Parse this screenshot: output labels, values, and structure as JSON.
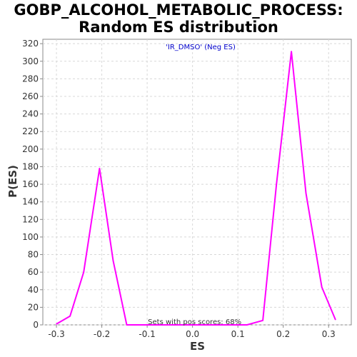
{
  "chart_data": {
    "type": "line",
    "title_lines": [
      "GOBP_ALCOHOL_METABOLIC_PROCESS:",
      "Random ES distribution"
    ],
    "xlabel": "ES",
    "ylabel": "P(ES)",
    "xlim": [
      -0.33,
      0.35
    ],
    "ylim": [
      0,
      325
    ],
    "x_ticks": [
      -0.3,
      -0.2,
      -0.1,
      0.0,
      0.1,
      0.2,
      0.3
    ],
    "x_tick_labels": [
      "-0.3",
      "-0.2",
      "-0.1",
      "0.0",
      "0.1",
      "0.2",
      "0.3"
    ],
    "y_ticks": [
      0,
      20,
      40,
      60,
      80,
      100,
      120,
      140,
      160,
      180,
      200,
      220,
      240,
      260,
      280,
      300,
      320
    ],
    "y_tick_labels": [
      "0",
      "20",
      "40",
      "60",
      "80",
      "100",
      "120",
      "140",
      "160",
      "180",
      "200",
      "220",
      "240",
      "260",
      "280",
      "300",
      "320"
    ],
    "grid": true,
    "series": [
      {
        "name": "'IR_DMSO' (Neg ES)",
        "color": "#ff00ff",
        "x": [
          -0.3,
          -0.27,
          -0.24,
          -0.205,
          -0.175,
          -0.145,
          -0.11,
          -0.08,
          0.0,
          0.08,
          0.12,
          0.155,
          0.185,
          0.218,
          0.25,
          0.285,
          0.315
        ],
        "y": [
          1,
          10,
          60,
          178,
          73,
          0,
          0,
          0,
          0,
          0,
          0,
          5,
          160,
          311,
          150,
          43,
          6
        ]
      }
    ],
    "legend_position": "top-center",
    "annotation": "Sets with pos scores: 68%"
  },
  "colors": {
    "plot_background": "#ffffff",
    "grid": "#d8d8d8",
    "axis": "#888888",
    "legend_text": "#0000cc"
  }
}
